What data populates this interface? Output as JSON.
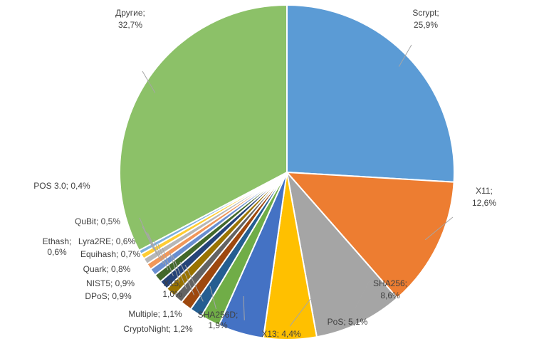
{
  "chart_data": {
    "type": "pie",
    "title": "",
    "start_angle_deg": 0,
    "direction": "clockwise",
    "slices": [
      {
        "label": "Scrypt",
        "value": 25.9,
        "display": "25,9%",
        "color": "#5b9bd5"
      },
      {
        "label": "X11",
        "value": 12.6,
        "display": "12,6%",
        "color": "#ed7d31"
      },
      {
        "label": "SHA256",
        "value": 8.6,
        "display": "8,6%",
        "color": "#a5a5a5"
      },
      {
        "label": "PoS",
        "value": 5.1,
        "display": "5,1%",
        "color": "#ffc000"
      },
      {
        "label": "X13",
        "value": 4.4,
        "display": "4,4%",
        "color": "#4472c4"
      },
      {
        "label": "SHA256D",
        "value": 1.9,
        "display": "1,9%",
        "color": "#70ad47"
      },
      {
        "label": "CryptoNight",
        "value": 1.2,
        "display": "1,2%",
        "color": "#255e91"
      },
      {
        "label": "Multiple",
        "value": 1.1,
        "display": "1,1%",
        "color": "#9e480e"
      },
      {
        "label": "DPoS",
        "value": 0.9,
        "display": "0,9%",
        "color": "#636363"
      },
      {
        "label": "X15",
        "value": 1.0,
        "display": "1,0%",
        "color": "#997300"
      },
      {
        "label": "NIST5",
        "value": 0.9,
        "display": "0,9%",
        "color": "#264478"
      },
      {
        "label": "Quark",
        "value": 0.8,
        "display": "0,8%",
        "color": "#43682b"
      },
      {
        "label": "Equihash",
        "value": 0.7,
        "display": "0,7%",
        "color": "#698ed0"
      },
      {
        "label": "Ethash",
        "value": 0.6,
        "display": "0,6%",
        "color": "#f1975a"
      },
      {
        "label": "Lyra2RE",
        "value": 0.6,
        "display": "0,6%",
        "color": "#b7b7b7"
      },
      {
        "label": "QuBit",
        "value": 0.5,
        "display": "0,5%",
        "color": "#ffcd33"
      },
      {
        "label": "POS 3.0",
        "value": 0.4,
        "display": "0,4%",
        "color": "#7cafdd"
      },
      {
        "label": "Другие",
        "value": 32.7,
        "display": "32,7%",
        "color": "#8cc168"
      }
    ]
  }
}
